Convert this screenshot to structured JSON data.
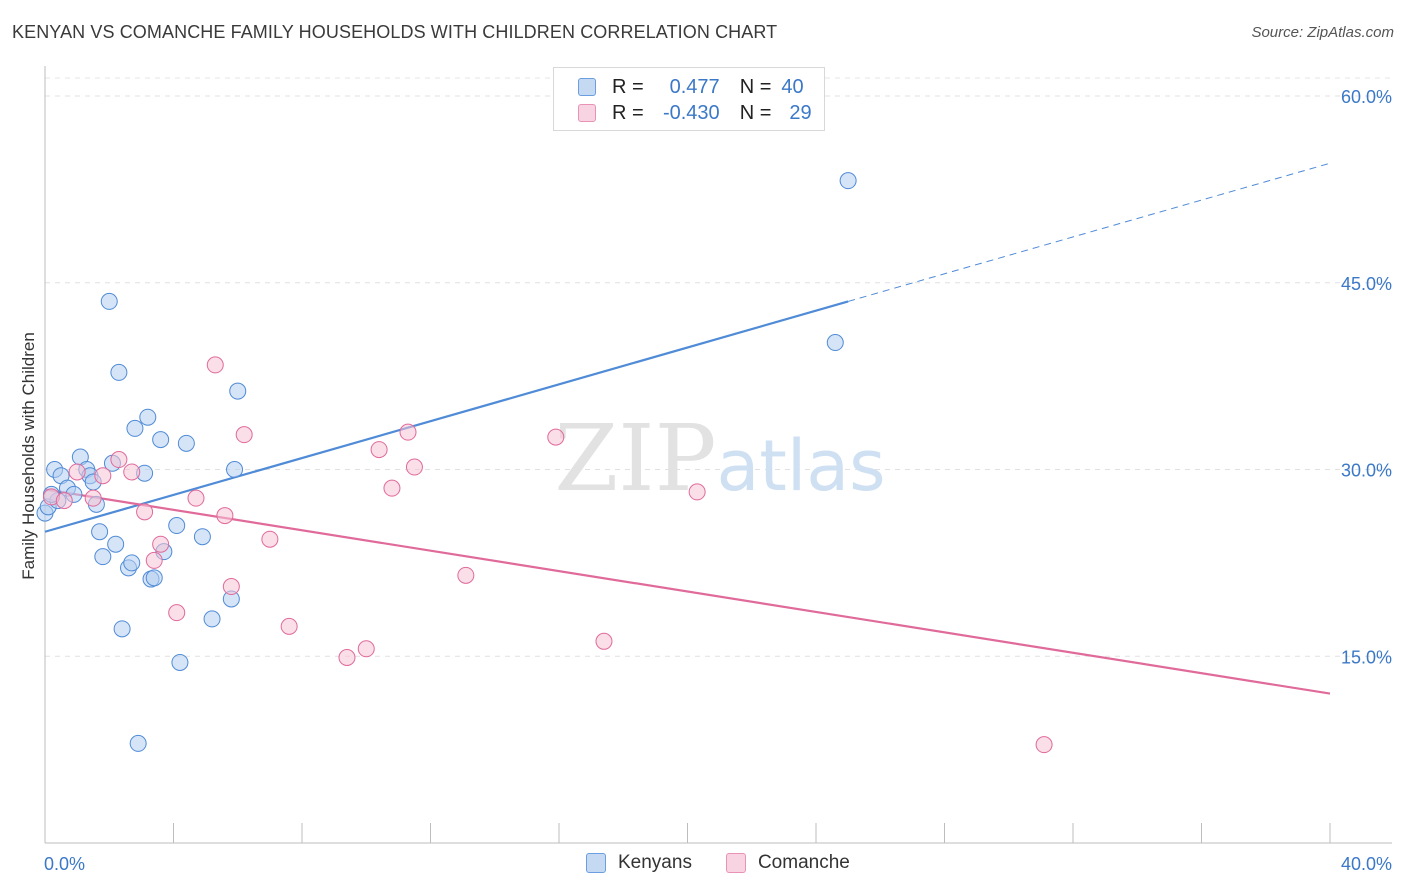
{
  "chart_data": {
    "type": "scatter",
    "title": "KENYAN VS COMANCHE FAMILY HOUSEHOLDS WITH CHILDREN CORRELATION CHART",
    "source": "Source: ZipAtlas.com",
    "xlabel": "",
    "ylabel": "Family Households with Children",
    "xlim": [
      0,
      40
    ],
    "ylim": [
      0,
      60
    ],
    "x_tick_labels": [
      "0.0%",
      "40.0%"
    ],
    "y_ticks": [
      15,
      30,
      45,
      60
    ],
    "y_tick_labels": [
      "15.0%",
      "30.0%",
      "45.0%",
      "60.0%"
    ],
    "grid": true,
    "watermark": "ZIPatlas",
    "legend": [
      {
        "r_label": "R =",
        "r": "0.477",
        "n_label": "N =",
        "n": "40"
      },
      {
        "r_label": "R =",
        "r": "-0.430",
        "n_label": "N =",
        "n": "29"
      }
    ],
    "series": [
      {
        "name": "Kenyans",
        "color": "#4f8bd6",
        "fill": "#b5cdf0",
        "trend": {
          "x0": 0,
          "y0": 25.0,
          "x1": 25,
          "y1": 43.5,
          "dash_to_x": 40,
          "dash_to_y": 54.6
        },
        "points": [
          [
            0.0,
            26.5
          ],
          [
            0.1,
            27.0
          ],
          [
            0.3,
            30.0
          ],
          [
            0.4,
            27.5
          ],
          [
            0.5,
            29.5
          ],
          [
            0.7,
            28.5
          ],
          [
            0.9,
            28.0
          ],
          [
            1.1,
            31.0
          ],
          [
            1.3,
            30.0
          ],
          [
            1.4,
            29.5
          ],
          [
            1.5,
            29.0
          ],
          [
            1.6,
            27.2
          ],
          [
            1.7,
            25.0
          ],
          [
            1.8,
            23.0
          ],
          [
            2.0,
            43.5
          ],
          [
            2.1,
            30.5
          ],
          [
            2.2,
            24.0
          ],
          [
            2.3,
            37.8
          ],
          [
            2.4,
            17.2
          ],
          [
            2.6,
            22.1
          ],
          [
            2.7,
            22.5
          ],
          [
            2.8,
            33.3
          ],
          [
            2.9,
            8.0
          ],
          [
            3.1,
            29.7
          ],
          [
            3.2,
            34.2
          ],
          [
            3.3,
            21.2
          ],
          [
            3.4,
            21.3
          ],
          [
            3.6,
            32.4
          ],
          [
            3.7,
            23.4
          ],
          [
            4.1,
            25.5
          ],
          [
            4.2,
            14.5
          ],
          [
            4.4,
            32.1
          ],
          [
            4.9,
            24.6
          ],
          [
            5.2,
            18.0
          ],
          [
            5.8,
            19.6
          ],
          [
            5.9,
            30.0
          ],
          [
            6.0,
            36.3
          ],
          [
            24.6,
            40.2
          ],
          [
            25.0,
            53.2
          ],
          [
            0.2,
            28.0
          ]
        ]
      },
      {
        "name": "Comanche",
        "color": "#e06a9a",
        "fill": "#f5c2d5",
        "trend": {
          "x0": 0,
          "y0": 28.4,
          "x1": 40,
          "y1": 12.0
        },
        "points": [
          [
            0.2,
            27.8
          ],
          [
            0.6,
            27.5
          ],
          [
            1.0,
            29.8
          ],
          [
            1.5,
            27.7
          ],
          [
            1.8,
            29.5
          ],
          [
            2.3,
            30.8
          ],
          [
            2.7,
            29.8
          ],
          [
            3.1,
            26.6
          ],
          [
            3.4,
            22.7
          ],
          [
            3.6,
            24.0
          ],
          [
            4.1,
            18.5
          ],
          [
            4.7,
            27.7
          ],
          [
            5.3,
            38.4
          ],
          [
            5.6,
            26.3
          ],
          [
            5.8,
            20.6
          ],
          [
            6.2,
            32.8
          ],
          [
            7.0,
            24.4
          ],
          [
            7.6,
            17.4
          ],
          [
            9.4,
            14.9
          ],
          [
            10.0,
            15.6
          ],
          [
            10.4,
            31.6
          ],
          [
            10.8,
            28.5
          ],
          [
            11.3,
            33.0
          ],
          [
            11.5,
            30.2
          ],
          [
            13.1,
            21.5
          ],
          [
            15.9,
            32.6
          ],
          [
            17.4,
            16.2
          ],
          [
            20.3,
            28.2
          ],
          [
            31.1,
            7.9
          ]
        ]
      }
    ]
  }
}
